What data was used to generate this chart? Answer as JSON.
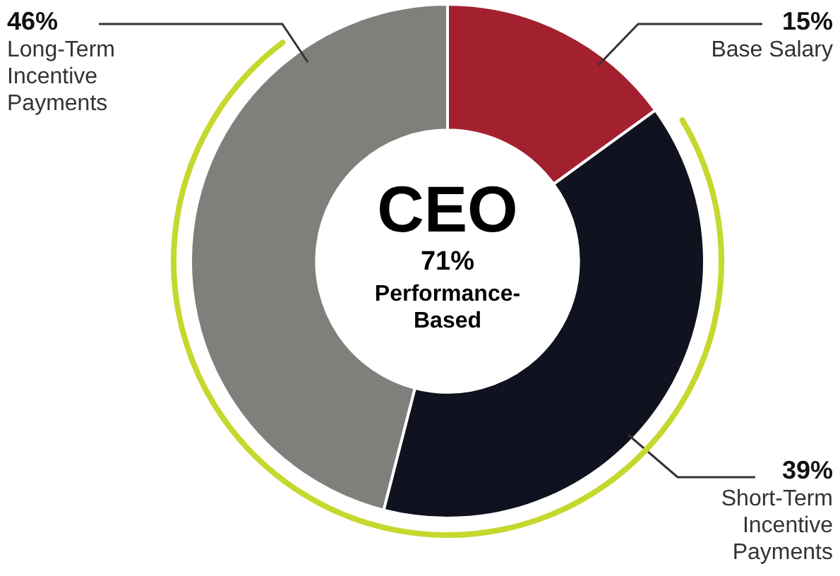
{
  "chart_data": {
    "type": "donut",
    "title": "CEO",
    "annotations": [
      "71%",
      "Performance-Based"
    ],
    "categories": [
      "Base Salary",
      "Short-Term Incentive Payments",
      "Long-Term Incentive Payments"
    ],
    "values": [
      15,
      39,
      46
    ],
    "value_labels": [
      "15%",
      "39%",
      "46%"
    ],
    "colors": [
      "#a3202e",
      "#10131f",
      "#7f7f7b"
    ],
    "legend": false
  }
}
